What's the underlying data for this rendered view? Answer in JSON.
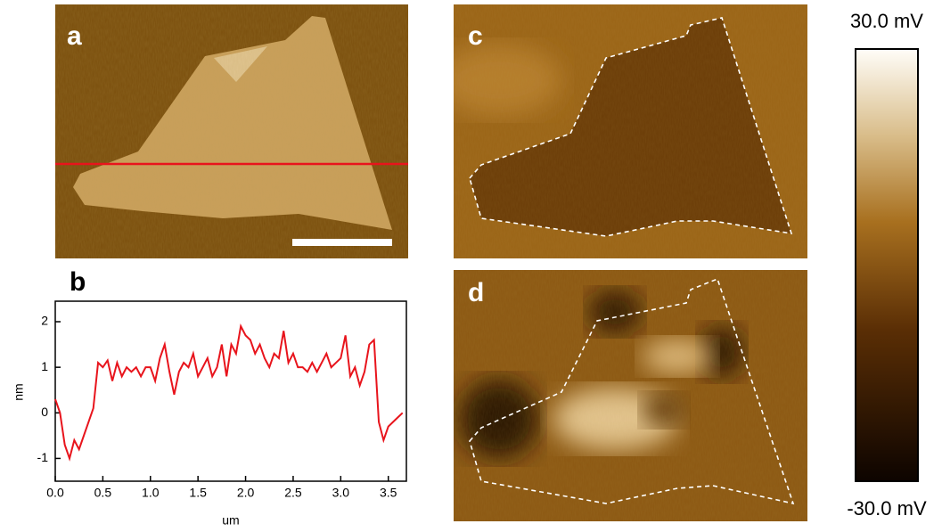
{
  "panels": [
    "a",
    "b",
    "c",
    "d"
  ],
  "colorbar": {
    "lim": [
      -30,
      30
    ],
    "ticks": [
      {
        "value": 30,
        "label": "30.0 mV"
      },
      {
        "value": -30,
        "label": "-30.0 mV"
      }
    ]
  },
  "chart_data": {
    "type": "line",
    "xlabel": "um",
    "ylabel": "nm",
    "xlim": [
      0,
      3.69
    ],
    "ylim": [
      -1.5,
      2.45
    ],
    "xticks": [
      {
        "value": 0,
        "label": "0.0"
      },
      {
        "value": 0.5,
        "label": "0.5"
      },
      {
        "value": 1,
        "label": "1.0"
      },
      {
        "value": 1.5,
        "label": "1.5"
      },
      {
        "value": 2,
        "label": "2.0"
      },
      {
        "value": 2.5,
        "label": "2.5"
      },
      {
        "value": 3,
        "label": "3.0"
      },
      {
        "value": 3.5,
        "label": "3.5"
      }
    ],
    "yticks": [
      -1,
      0,
      1,
      2
    ],
    "series": [
      {
        "color": "#e8141c",
        "x": [
          0,
          0.05,
          0.1,
          0.15,
          0.2,
          0.25,
          0.3,
          0.35,
          0.4,
          0.45,
          0.5,
          0.55,
          0.6,
          0.65,
          0.7,
          0.75,
          0.8,
          0.85,
          0.9,
          0.95,
          1.0,
          1.05,
          1.1,
          1.15,
          1.2,
          1.25,
          1.3,
          1.35,
          1.4,
          1.45,
          1.5,
          1.55,
          1.6,
          1.65,
          1.7,
          1.75,
          1.8,
          1.85,
          1.9,
          1.95,
          2.0,
          2.05,
          2.1,
          2.15,
          2.2,
          2.25,
          2.3,
          2.35,
          2.4,
          2.45,
          2.5,
          2.55,
          2.6,
          2.65,
          2.7,
          2.75,
          2.8,
          2.85,
          2.9,
          2.95,
          3.0,
          3.05,
          3.1,
          3.15,
          3.2,
          3.25,
          3.3,
          3.35,
          3.4,
          3.45,
          3.5,
          3.55,
          3.6,
          3.65
        ],
        "values": [
          0.3,
          0,
          -0.7,
          -1.0,
          -0.6,
          -0.8,
          -0.5,
          -0.2,
          0.1,
          1.1,
          1.0,
          1.15,
          0.7,
          1.1,
          0.8,
          1.0,
          0.9,
          1.0,
          0.8,
          1.0,
          1.0,
          0.7,
          1.2,
          1.5,
          0.9,
          0.4,
          0.9,
          1.1,
          1.0,
          1.3,
          0.8,
          1.0,
          1.2,
          0.8,
          1.0,
          1.5,
          0.8,
          1.5,
          1.3,
          1.9,
          1.7,
          1.6,
          1.3,
          1.5,
          1.2,
          1.0,
          1.3,
          1.2,
          1.8,
          1.1,
          1.3,
          1.0,
          1.0,
          0.9,
          1.1,
          0.9,
          1.1,
          1.3,
          1.0,
          1.1,
          1.2,
          1.7,
          0.8,
          1.0,
          0.6,
          0.9,
          1.5,
          1.6,
          -0.2,
          -0.6,
          -0.3,
          -0.2,
          -0.1,
          0.0
        ]
      }
    ]
  }
}
